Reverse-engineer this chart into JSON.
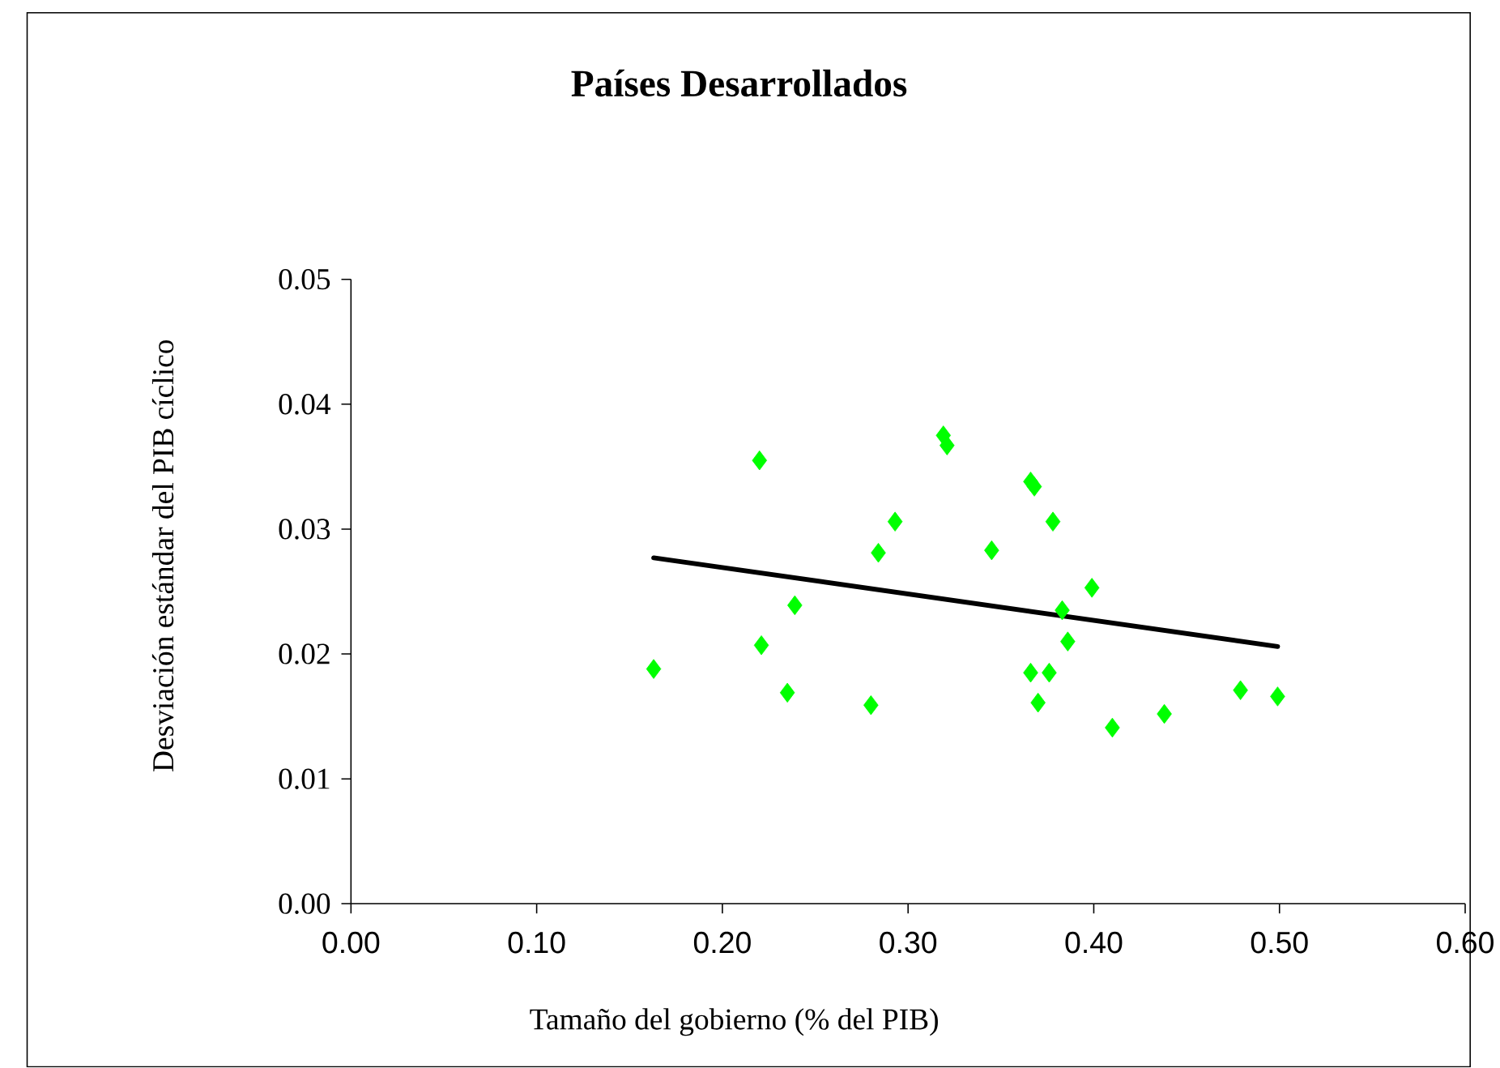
{
  "chart_data": {
    "type": "scatter",
    "title": "Países Desarrollados",
    "xlabel": "Tamaño del gobierno (% del PIB)",
    "ylabel": "Desviación estándar del PIB cíclico",
    "xlim": [
      0,
      0.6
    ],
    "ylim": [
      0,
      0.05
    ],
    "xticks": [
      {
        "value": 0,
        "label": "0.00"
      },
      {
        "value": 0.1,
        "label": "0.10"
      },
      {
        "value": 0.2,
        "label": "0.20"
      },
      {
        "value": 0.3,
        "label": "0.30"
      },
      {
        "value": 0.4,
        "label": "0.40"
      },
      {
        "value": 0.5,
        "label": "0.50"
      },
      {
        "value": 0.6,
        "label": "0.60"
      }
    ],
    "yticks": [
      {
        "value": 0,
        "label": "0.00"
      },
      {
        "value": 0.01,
        "label": "0.01"
      },
      {
        "value": 0.02,
        "label": "0.02"
      },
      {
        "value": 0.03,
        "label": "0.03"
      },
      {
        "value": 0.04,
        "label": "0.04"
      },
      {
        "value": 0.05,
        "label": "0.05"
      }
    ],
    "grid": false,
    "marker": "diamond",
    "series": [
      {
        "color": "#00ff00",
        "x": [
          0.163,
          0.22,
          0.221,
          0.239,
          0.235,
          0.28,
          0.284,
          0.293,
          0.319,
          0.321,
          0.345,
          0.366,
          0.368,
          0.378,
          0.366,
          0.376,
          0.37,
          0.383,
          0.386,
          0.399,
          0.41,
          0.438,
          0.479,
          0.499
        ],
        "values": [
          0.0188,
          0.0355,
          0.0207,
          0.0239,
          0.0169,
          0.0159,
          0.0281,
          0.0306,
          0.0375,
          0.0367,
          0.0283,
          0.0338,
          0.0334,
          0.0306,
          0.0185,
          0.0185,
          0.0161,
          0.0235,
          0.021,
          0.0253,
          0.0141,
          0.0152,
          0.0171,
          0.0166
        ]
      },
      {
        "type": "line",
        "color": "#000000",
        "marker": "none",
        "line_style": "solid",
        "x": [
          0.163,
          0.499
        ],
        "values": [
          0.0277,
          0.0206
        ]
      }
    ]
  }
}
